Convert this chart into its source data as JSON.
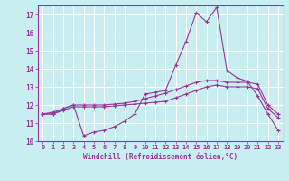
{
  "x": [
    0,
    1,
    2,
    3,
    4,
    5,
    6,
    7,
    8,
    9,
    10,
    11,
    12,
    13,
    14,
    15,
    16,
    17,
    18,
    19,
    20,
    21,
    22,
    23
  ],
  "line1": [
    11.5,
    11.6,
    11.8,
    12.0,
    10.3,
    10.5,
    10.6,
    10.8,
    11.1,
    11.5,
    12.6,
    12.7,
    12.8,
    14.2,
    15.5,
    17.1,
    16.6,
    17.4,
    13.9,
    13.5,
    13.3,
    12.5,
    11.5,
    10.6
  ],
  "line2": [
    11.5,
    11.5,
    11.7,
    11.9,
    11.9,
    11.9,
    11.9,
    11.95,
    12.0,
    12.05,
    12.1,
    12.15,
    12.2,
    12.4,
    12.6,
    12.8,
    13.0,
    13.1,
    13.0,
    13.0,
    13.0,
    12.9,
    11.8,
    11.3
  ],
  "line3": [
    11.5,
    11.5,
    11.8,
    12.0,
    12.0,
    12.0,
    12.0,
    12.05,
    12.1,
    12.2,
    12.35,
    12.5,
    12.65,
    12.85,
    13.05,
    13.25,
    13.35,
    13.35,
    13.25,
    13.25,
    13.25,
    13.15,
    12.0,
    11.5
  ],
  "line_color": "#993399",
  "bg_color": "#c8eef0",
  "grid_color": "#ffffff",
  "xlabel": "Windchill (Refroidissement éolien,°C)",
  "ylim": [
    10,
    17.5
  ],
  "xlim": [
    -0.5,
    23.5
  ],
  "yticks": [
    10,
    11,
    12,
    13,
    14,
    15,
    16,
    17
  ],
  "xticks": [
    0,
    1,
    2,
    3,
    4,
    5,
    6,
    7,
    8,
    9,
    10,
    11,
    12,
    13,
    14,
    15,
    16,
    17,
    18,
    19,
    20,
    21,
    22,
    23
  ]
}
